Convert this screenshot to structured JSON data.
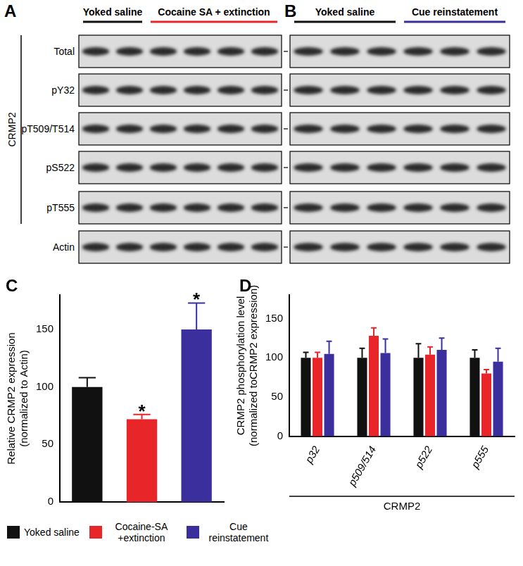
{
  "blots": {
    "rows": [
      "Total",
      "pY32",
      "pT509/T514",
      "pS522",
      "pT555",
      "Actin"
    ],
    "row_group": {
      "label": "CRMP2",
      "count": 5
    },
    "panels": [
      {
        "panel": "A",
        "groups": [
          {
            "label": "Yoked saline",
            "lanes": 2,
            "color": "#111111"
          },
          {
            "label": "Cocaine SA + extinction",
            "lanes": 4,
            "color": "#e8262a"
          }
        ]
      },
      {
        "panel": "B",
        "groups": [
          {
            "label": "Yoked saline",
            "lanes": 3,
            "color": "#111111"
          },
          {
            "label": "Cue reinstatement",
            "lanes": 3,
            "color": "#3b2f9e"
          }
        ]
      }
    ]
  },
  "chart_data": [
    {
      "panel": "C",
      "type": "bar",
      "categories": [
        null,
        null,
        null
      ],
      "values": [
        100,
        72,
        150
      ],
      "errors": [
        8,
        4,
        23
      ],
      "colors": [
        "#111111",
        "#e8262a",
        "#3b2f9e"
      ],
      "annotations": [
        null,
        "*",
        "*"
      ],
      "ylabel": "Relative CRMP2 expression (normalized to Actin)",
      "ylim": [
        0,
        180
      ],
      "yticks": [
        0,
        50,
        100,
        150
      ],
      "grid": false
    },
    {
      "panel": "D",
      "type": "bar",
      "categories": [
        "p32",
        "p509/514",
        "p522",
        "p555"
      ],
      "xlabel": "CRMP2",
      "ylabel": "CRMP2 phosphorylation level (normalized toCRMP2 expression)",
      "ylim": [
        0,
        180
      ],
      "yticks": [
        0,
        50,
        100,
        150
      ],
      "grid": false,
      "legend": "bottom-left",
      "series": [
        {
          "name": "Yoked saline",
          "color": "#111111",
          "values": [
            100,
            100,
            100,
            100
          ],
          "errors": [
            7,
            12,
            18,
            10
          ]
        },
        {
          "name": "Cocaine-SA +extinction",
          "color": "#e8262a",
          "values": [
            100,
            128,
            104,
            80
          ],
          "errors": [
            7,
            10,
            10,
            5
          ]
        },
        {
          "name": "Cue reinstatement",
          "color": "#3b2f9e",
          "values": [
            105,
            106,
            110,
            95
          ],
          "errors": [
            16,
            18,
            15,
            17
          ]
        }
      ]
    }
  ]
}
